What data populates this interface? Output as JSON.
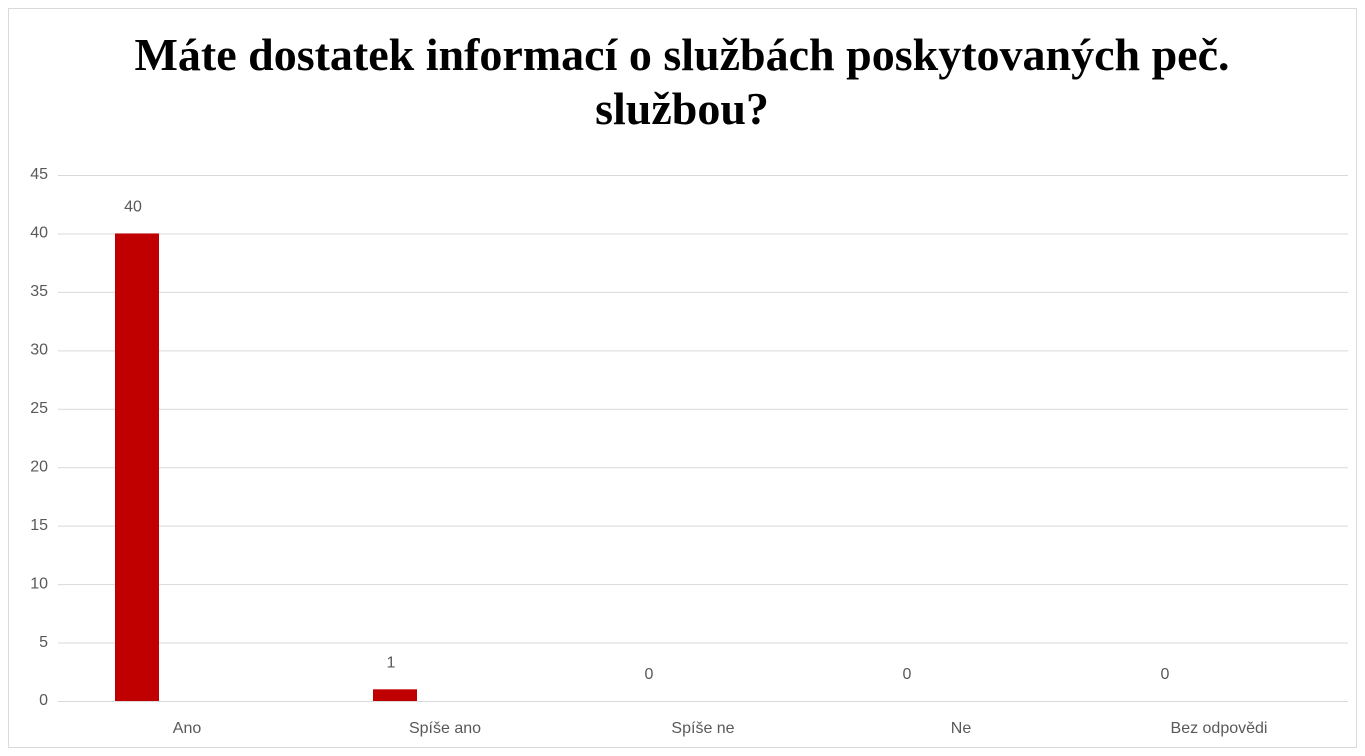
{
  "chart_data": {
    "type": "bar",
    "title": "Máte dostatek informací o službách poskytovaných peč. službou?",
    "categories": [
      "Ano",
      "Spíše ano",
      "Spíše ne",
      "Ne",
      "Bez odpovědi"
    ],
    "values": [
      40,
      1,
      0,
      0,
      0
    ],
    "color": "#c00000",
    "ylim": [
      0,
      45
    ],
    "yticks": [
      0,
      5,
      10,
      15,
      20,
      25,
      30,
      35,
      40,
      45
    ],
    "grid": true
  }
}
